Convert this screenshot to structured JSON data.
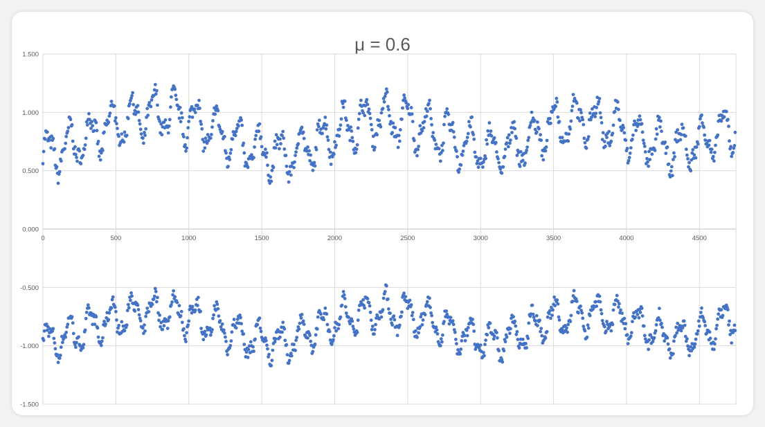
{
  "chart_data": {
    "type": "scatter",
    "title": "μ = 0.6",
    "xlabel": "",
    "ylabel": "",
    "xlim": [
      0,
      4750
    ],
    "ylim": [
      -1.5,
      1.5
    ],
    "x_ticks": [
      "0",
      "500",
      "1000",
      "1500",
      "2000",
      "2500",
      "3000",
      "3500",
      "4000",
      "4500"
    ],
    "x_tick_values": [
      0,
      500,
      1000,
      1500,
      2000,
      2500,
      3000,
      3500,
      4000,
      4500
    ],
    "y_ticks": [
      "1.500",
      "1.000",
      "0.500",
      "0.000",
      "-0.500",
      "-1.000",
      "-1.500"
    ],
    "y_tick_values": [
      1.5,
      1.0,
      0.5,
      0.0,
      -0.5,
      -1.0,
      -1.5
    ],
    "grid": true,
    "legend": "none",
    "marker_color": "#4472c4",
    "series": [
      {
        "x_step": 5,
        "x_start": 0,
        "x_end": 4745,
        "values_approx": {
          "upper_band_center": [
            0.62,
            0.72,
            0.85,
            0.95,
            1.0,
            0.93,
            0.8,
            0.68,
            0.62,
            0.72,
            0.86,
            0.95,
            0.93,
            0.84,
            0.72,
            0.66,
            0.74,
            0.9,
            0.95,
            0.87,
            0.75,
            0.68,
            0.76,
            0.88
          ],
          "lower_band_center": [
            -0.98,
            -0.9,
            -0.8,
            -0.72,
            -0.7,
            -0.75,
            -0.85,
            -0.95,
            -0.98,
            -0.87,
            -0.76,
            -0.7,
            -0.72,
            -0.8,
            -0.92,
            -0.97,
            -0.88,
            -0.76,
            -0.72,
            -0.75,
            -0.85,
            -0.95,
            -0.88,
            -0.75
          ]
        }
      }
    ]
  }
}
